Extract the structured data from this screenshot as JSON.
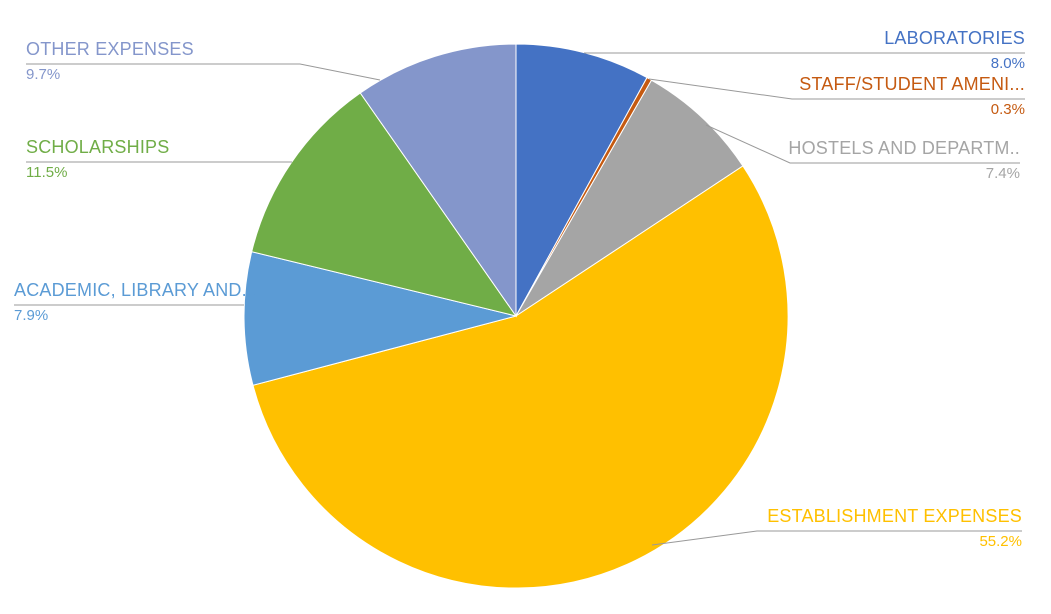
{
  "chart_data": {
    "type": "pie",
    "title": "",
    "legend_position": "none",
    "labels_style": "callout-with-leader-lines",
    "start_angle_deg": 0,
    "direction": "clockwise",
    "background_color": "#FFFFFF",
    "leader_line_color": "#999999",
    "slices": [
      {
        "label": "LABORATORIES",
        "value": 8.0,
        "pct_label": "8.0%",
        "color": "#4472C4"
      },
      {
        "label": "STAFF/STUDENT AMENI...",
        "value": 0.3,
        "pct_label": "0.3%",
        "color": "#C55A11"
      },
      {
        "label": "HOSTELS AND DEPARTM..",
        "value": 7.4,
        "pct_label": "7.4%",
        "color": "#A5A5A5"
      },
      {
        "label": "ESTABLISHMENT EXPENSES",
        "value": 55.2,
        "pct_label": "55.2%",
        "color": "#FFC000"
      },
      {
        "label": "ACADEMIC, LIBRARY AND...",
        "value": 7.9,
        "pct_label": "7.9%",
        "color": "#5B9BD5"
      },
      {
        "label": "SCHOLARSHIPS",
        "value": 11.5,
        "pct_label": "11.5%",
        "color": "#70AD47"
      },
      {
        "label": "OTHER EXPENSES",
        "value": 9.7,
        "pct_label": "9.7%",
        "color": "#8496CB"
      }
    ]
  }
}
